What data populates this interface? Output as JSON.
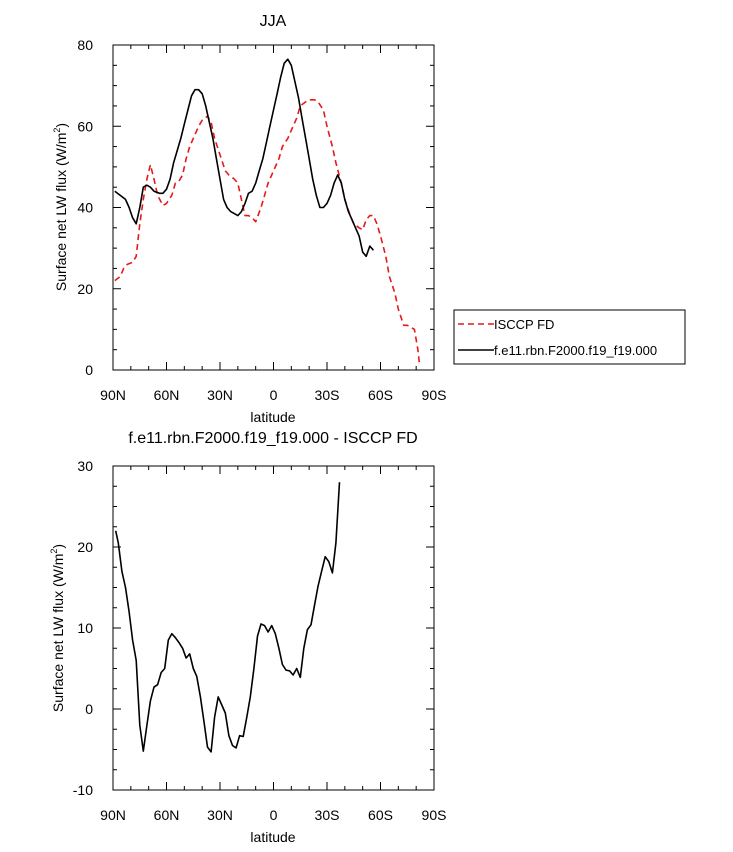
{
  "chart_data": [
    {
      "type": "line",
      "title": "JJA",
      "xlabel": "latitude",
      "ylabel": "Surface net LW flux (W/m",
      "ylabel_sup": "2",
      "ylabel_end": ")",
      "xlim": [
        90,
        -90
      ],
      "ylim": [
        0,
        80
      ],
      "x_ticks": [
        {
          "value": 90,
          "label": "90N"
        },
        {
          "value": 60,
          "label": "60N"
        },
        {
          "value": 30,
          "label": "30N"
        },
        {
          "value": 0,
          "label": "0"
        },
        {
          "value": -30,
          "label": "30S"
        },
        {
          "value": -60,
          "label": "60S"
        },
        {
          "value": -90,
          "label": "90S"
        }
      ],
      "y_ticks": [
        {
          "value": 0,
          "label": "0"
        },
        {
          "value": 20,
          "label": "20"
        },
        {
          "value": 40,
          "label": "40"
        },
        {
          "value": 60,
          "label": "60"
        },
        {
          "value": 80,
          "label": "80"
        }
      ],
      "grid": false,
      "legend": "right",
      "series": [
        {
          "name": "ISCCP FD",
          "color": "#e31a1c",
          "dash": true,
          "points": [
            [
              89,
              22
            ],
            [
              86,
              23
            ],
            [
              84,
              25
            ],
            [
              82,
              26
            ],
            [
              79,
              26.5
            ],
            [
              77,
              28
            ],
            [
              75,
              36
            ],
            [
              73,
              42
            ],
            [
              71,
              47
            ],
            [
              69,
              50.5
            ],
            [
              67,
              47
            ],
            [
              65,
              43
            ],
            [
              62,
              40.5
            ],
            [
              60,
              41
            ],
            [
              57,
              43
            ],
            [
              55,
              46
            ],
            [
              53,
              46.5
            ],
            [
              51,
              48
            ],
            [
              49,
              52
            ],
            [
              47,
              55
            ],
            [
              45,
              57
            ],
            [
              42,
              60
            ],
            [
              40,
              61.5
            ],
            [
              37,
              62.5
            ],
            [
              35,
              61
            ],
            [
              33,
              57
            ],
            [
              30,
              53
            ],
            [
              27,
              49
            ],
            [
              25,
              48
            ],
            [
              22,
              47
            ],
            [
              20,
              46
            ],
            [
              18,
              42
            ],
            [
              16,
              38
            ],
            [
              14,
              38
            ],
            [
              12,
              37.5
            ],
            [
              10,
              36.5
            ],
            [
              7,
              40
            ],
            [
              5,
              43
            ],
            [
              3,
              46
            ],
            [
              0,
              49
            ],
            [
              -3,
              52
            ],
            [
              -5,
              55
            ],
            [
              -8,
              57
            ],
            [
              -10,
              59
            ],
            [
              -13,
              62
            ],
            [
              -15,
              65
            ],
            [
              -18,
              66
            ],
            [
              -20,
              66.5
            ],
            [
              -23,
              66.5
            ],
            [
              -25,
              66
            ],
            [
              -28,
              64
            ],
            [
              -30,
              60
            ],
            [
              -33,
              55
            ],
            [
              -35,
              51
            ],
            [
              -38,
              46
            ],
            [
              -40,
              42
            ],
            [
              -43,
              38
            ],
            [
              -45,
              36
            ],
            [
              -48,
              35
            ],
            [
              -50,
              34.5
            ],
            [
              -52,
              37
            ],
            [
              -54,
              38
            ],
            [
              -56,
              38
            ],
            [
              -58,
              36
            ],
            [
              -60,
              33
            ],
            [
              -63,
              28
            ],
            [
              -65,
              23
            ],
            [
              -68,
              19
            ],
            [
              -70,
              15
            ],
            [
              -73,
              11
            ],
            [
              -75,
              11
            ],
            [
              -77,
              10.5
            ],
            [
              -79,
              10
            ],
            [
              -81,
              5
            ],
            [
              -82,
              1
            ]
          ]
        },
        {
          "name": "f.e11.rbn.F2000.f19_f19.000",
          "color": "#000000",
          "dash": false,
          "points": [
            [
              89,
              44
            ],
            [
              86,
              43
            ],
            [
              83,
              42
            ],
            [
              81,
              40
            ],
            [
              79,
              37.5
            ],
            [
              77,
              36
            ],
            [
              75,
              40
            ],
            [
              73,
              45
            ],
            [
              71,
              45.5
            ],
            [
              69,
              45
            ],
            [
              67,
              44
            ],
            [
              64,
              43.5
            ],
            [
              62,
              43.5
            ],
            [
              60,
              44.5
            ],
            [
              58,
              47
            ],
            [
              56,
              51
            ],
            [
              54,
              54
            ],
            [
              52,
              57
            ],
            [
              50,
              60.5
            ],
            [
              48,
              64
            ],
            [
              46,
              67.5
            ],
            [
              44,
              69
            ],
            [
              42,
              69
            ],
            [
              40,
              68
            ],
            [
              38,
              65
            ],
            [
              36,
              61
            ],
            [
              34,
              57
            ],
            [
              32,
              52
            ],
            [
              30,
              47
            ],
            [
              28,
              42
            ],
            [
              26,
              40
            ],
            [
              24,
              39
            ],
            [
              22,
              38.5
            ],
            [
              20,
              38
            ],
            [
              18,
              39
            ],
            [
              16,
              41
            ],
            [
              14,
              43.5
            ],
            [
              12,
              44
            ],
            [
              10,
              46
            ],
            [
              8,
              49
            ],
            [
              6,
              52
            ],
            [
              4,
              56
            ],
            [
              2,
              60
            ],
            [
              0,
              64
            ],
            [
              -2,
              68
            ],
            [
              -4,
              72
            ],
            [
              -6,
              75.5
            ],
            [
              -8,
              76.5
            ],
            [
              -10,
              75
            ],
            [
              -12,
              71
            ],
            [
              -14,
              67
            ],
            [
              -16,
              62
            ],
            [
              -18,
              57
            ],
            [
              -20,
              52
            ],
            [
              -22,
              47
            ],
            [
              -24,
              43
            ],
            [
              -26,
              40
            ],
            [
              -28,
              40
            ],
            [
              -30,
              41
            ],
            [
              -32,
              43
            ],
            [
              -34,
              46
            ],
            [
              -36,
              48
            ],
            [
              -38,
              46
            ],
            [
              -40,
              42
            ],
            [
              -42,
              39
            ],
            [
              -44,
              37
            ],
            [
              -46,
              35
            ],
            [
              -48,
              33
            ],
            [
              -50,
              29
            ],
            [
              -52,
              28
            ],
            [
              -54,
              30.5
            ],
            [
              -56,
              29.5
            ]
          ]
        }
      ]
    },
    {
      "type": "line",
      "title": "f.e11.rbn.F2000.f19_f19.000 - ISCCP FD",
      "xlabel": "latitude",
      "ylabel": "Surface net LW flux (W/m",
      "ylabel_sup": "2",
      "ylabel_end": ")",
      "xlim": [
        90,
        -90
      ],
      "ylim": [
        -10,
        30
      ],
      "x_ticks": [
        {
          "value": 90,
          "label": "90N"
        },
        {
          "value": 60,
          "label": "60N"
        },
        {
          "value": 30,
          "label": "30N"
        },
        {
          "value": 0,
          "label": "0"
        },
        {
          "value": -30,
          "label": "30S"
        },
        {
          "value": -60,
          "label": "60S"
        },
        {
          "value": -90,
          "label": "90S"
        }
      ],
      "y_ticks": [
        {
          "value": -10,
          "label": "-10"
        },
        {
          "value": 0,
          "label": "0"
        },
        {
          "value": 10,
          "label": "10"
        },
        {
          "value": 20,
          "label": "20"
        },
        {
          "value": 30,
          "label": "30"
        }
      ],
      "grid": false,
      "series": [
        {
          "color": "#000000",
          "dash": false,
          "points": [
            [
              88.5,
              22
            ],
            [
              87,
              20.5
            ],
            [
              85,
              17
            ],
            [
              83,
              15
            ],
            [
              81,
              12
            ],
            [
              79,
              8.5
            ],
            [
              77,
              6
            ],
            [
              75,
              -2
            ],
            [
              73,
              -5.2
            ],
            [
              71,
              -2
            ],
            [
              69,
              1
            ],
            [
              67,
              2.7
            ],
            [
              65,
              3
            ],
            [
              63,
              4.5
            ],
            [
              61,
              5
            ],
            [
              59,
              8.5
            ],
            [
              57,
              9.3
            ],
            [
              55,
              8.8
            ],
            [
              53,
              8.2
            ],
            [
              51,
              7.5
            ],
            [
              49,
              6.3
            ],
            [
              47,
              6.8
            ],
            [
              45,
              5
            ],
            [
              43,
              4
            ],
            [
              41,
              1.5
            ],
            [
              39,
              -1.5
            ],
            [
              37,
              -4.7
            ],
            [
              35,
              -5.3
            ],
            [
              33,
              -1
            ],
            [
              31,
              1.5
            ],
            [
              29,
              0.5
            ],
            [
              27,
              -0.5
            ],
            [
              25,
              -3.3
            ],
            [
              23,
              -4.5
            ],
            [
              21,
              -4.8
            ],
            [
              19,
              -3.3
            ],
            [
              17,
              -3.4
            ],
            [
              15,
              -1
            ],
            [
              13,
              1.5
            ],
            [
              11,
              5
            ],
            [
              9,
              9
            ],
            [
              7,
              10.5
            ],
            [
              5,
              10.3
            ],
            [
              3,
              9.5
            ],
            [
              1,
              10.3
            ],
            [
              -1,
              9.3
            ],
            [
              -3,
              7.5
            ],
            [
              -5,
              5.5
            ],
            [
              -7,
              4.8
            ],
            [
              -9,
              4.7
            ],
            [
              -11,
              4.2
            ],
            [
              -13,
              5
            ],
            [
              -15,
              3.9
            ],
            [
              -17,
              7.5
            ],
            [
              -19,
              9.8
            ],
            [
              -21,
              10.4
            ],
            [
              -23,
              12.8
            ],
            [
              -25,
              15.2
            ],
            [
              -27,
              17
            ],
            [
              -29,
              18.8
            ],
            [
              -31,
              18.2
            ],
            [
              -33,
              16.8
            ],
            [
              -35,
              20.5
            ],
            [
              -37,
              28
            ]
          ]
        }
      ]
    }
  ]
}
